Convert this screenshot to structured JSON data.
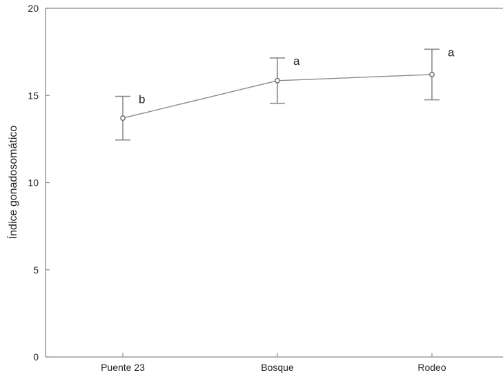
{
  "chart_data": {
    "type": "line",
    "ylabel": "Índice gonadosomático",
    "xlabel": "",
    "categories": [
      "Puente 23",
      "Bosque",
      "Rodeo"
    ],
    "values": [
      13.7,
      15.85,
      16.2
    ],
    "error_low": [
      12.45,
      14.55,
      14.75
    ],
    "error_high": [
      14.95,
      17.15,
      17.65
    ],
    "letters": [
      "b",
      "a",
      "a"
    ],
    "ylim": [
      0,
      20
    ],
    "yticks": [
      0,
      5,
      10,
      15,
      20
    ],
    "ytick_labels": [
      "0",
      "5",
      "10",
      "15",
      "20"
    ],
    "grid": false,
    "colors": {
      "line": "#8a8a8a",
      "marker_edge": "#666666"
    }
  }
}
